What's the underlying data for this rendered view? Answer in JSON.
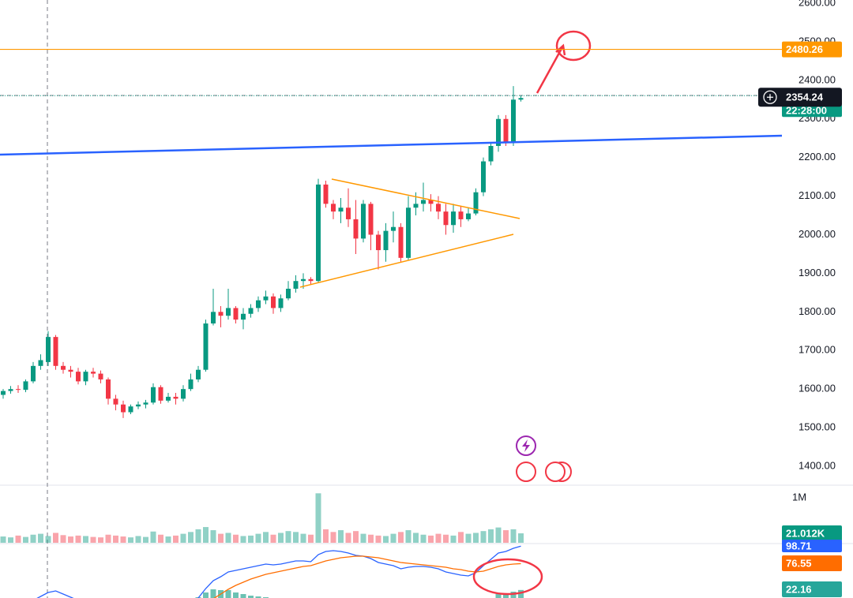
{
  "chart_data": {
    "type": "candlestick",
    "ylim": [
      1400,
      2600
    ],
    "yticks": [
      {
        "value": 2600,
        "label": "2600.00"
      },
      {
        "value": 2500,
        "label": "2500.00"
      },
      {
        "value": 2400,
        "label": "2400.00"
      },
      {
        "value": 2300,
        "label": "2300.00"
      },
      {
        "value": 2200,
        "label": "2200.00"
      },
      {
        "value": 2100,
        "label": "2100.00"
      },
      {
        "value": 2000,
        "label": "2000.00"
      },
      {
        "value": 1900,
        "label": "1900.00"
      },
      {
        "value": 1800,
        "label": "1800.00"
      },
      {
        "value": 1700,
        "label": "1700.00"
      },
      {
        "value": 1600,
        "label": "1600.00"
      },
      {
        "value": 1500,
        "label": "1500.00"
      },
      {
        "value": 1400,
        "label": "1400.00"
      }
    ],
    "open": [
      1585,
      1595,
      1600,
      1598,
      1620,
      1660,
      1670,
      1735,
      1660,
      1650,
      1645,
      1620,
      1645,
      1640,
      1625,
      1575,
      1560,
      1540,
      1555,
      1560,
      1565,
      1605,
      1570,
      1580,
      1575,
      1600,
      1625,
      1650,
      1770,
      1800,
      1790,
      1810,
      1780,
      1795,
      1810,
      1830,
      1840,
      1810,
      1835,
      1860,
      1880,
      1885,
      1880,
      2130,
      2080,
      2060,
      2070,
      2040,
      1990,
      2080,
      2000,
      1960,
      2010,
      2020,
      1940,
      2070,
      2080,
      2090,
      2080,
      2060,
      2025,
      2060,
      2040,
      2055,
      2110,
      2190,
      2230,
      2300,
      2240,
      2350
    ],
    "high": [
      1600,
      1608,
      1610,
      1625,
      1670,
      1690,
      1750,
      1740,
      1670,
      1660,
      1655,
      1650,
      1655,
      1648,
      1630,
      1585,
      1570,
      1560,
      1568,
      1572,
      1615,
      1610,
      1590,
      1590,
      1610,
      1640,
      1660,
      1780,
      1860,
      1815,
      1860,
      1815,
      1810,
      1820,
      1840,
      1855,
      1848,
      1845,
      1880,
      1895,
      1900,
      1890,
      2145,
      2140,
      2090,
      2095,
      2120,
      2090,
      2090,
      2085,
      2010,
      2030,
      2060,
      2030,
      2100,
      2110,
      2135,
      2105,
      2100,
      2080,
      2080,
      2075,
      2070,
      2120,
      2200,
      2240,
      2310,
      2310,
      2385,
      2360
    ],
    "low": [
      1575,
      1588,
      1590,
      1592,
      1615,
      1650,
      1660,
      1650,
      1640,
      1630,
      1612,
      1610,
      1630,
      1615,
      1560,
      1545,
      1525,
      1535,
      1548,
      1550,
      1560,
      1562,
      1565,
      1560,
      1568,
      1595,
      1618,
      1645,
      1765,
      1760,
      1780,
      1770,
      1755,
      1785,
      1800,
      1820,
      1795,
      1800,
      1830,
      1850,
      1860,
      1870,
      1875,
      2070,
      2040,
      2030,
      2020,
      1950,
      1980,
      1960,
      1910,
      1930,
      1980,
      1930,
      1935,
      2050,
      2060,
      2060,
      2040,
      2000,
      2005,
      2020,
      2035,
      2050,
      2100,
      2180,
      2215,
      2230,
      2230,
      2345
    ],
    "close": [
      1595,
      1600,
      1598,
      1620,
      1660,
      1675,
      1735,
      1660,
      1650,
      1645,
      1620,
      1645,
      1640,
      1625,
      1575,
      1560,
      1540,
      1555,
      1560,
      1565,
      1605,
      1570,
      1580,
      1575,
      1600,
      1625,
      1650,
      1770,
      1800,
      1790,
      1810,
      1780,
      1795,
      1810,
      1830,
      1840,
      1810,
      1835,
      1860,
      1880,
      1885,
      1880,
      2130,
      2080,
      2060,
      2070,
      2040,
      1990,
      2080,
      2000,
      1960,
      2010,
      2020,
      1940,
      2070,
      2080,
      2090,
      2080,
      2060,
      2025,
      2060,
      2040,
      2055,
      2110,
      2190,
      2230,
      2300,
      2240,
      2350,
      2354.24
    ],
    "volume": [
      14,
      12,
      16,
      13,
      18,
      20,
      15,
      22,
      17,
      14,
      16,
      15,
      13,
      12,
      18,
      16,
      14,
      12,
      15,
      13,
      25,
      18,
      14,
      16,
      20,
      24,
      30,
      35,
      28,
      20,
      22,
      18,
      15,
      16,
      20,
      24,
      18,
      22,
      26,
      24,
      20,
      18,
      110,
      30,
      24,
      28,
      22,
      26,
      20,
      18,
      16,
      15,
      20,
      24,
      28,
      22,
      18,
      16,
      20,
      18,
      16,
      24,
      20,
      22,
      26,
      30,
      34,
      28,
      30,
      21.012
    ],
    "volume_label": "21.012K",
    "volume_scale_label": "1M",
    "macd": [
      20,
      22,
      25,
      27,
      30,
      35,
      40,
      42,
      38,
      34,
      30,
      28,
      25,
      22,
      15,
      10,
      5,
      3,
      2,
      4,
      8,
      12,
      15,
      18,
      22,
      28,
      33,
      45,
      55,
      60,
      66,
      68,
      70,
      72,
      74,
      76,
      75,
      76,
      78,
      80,
      80,
      79,
      88,
      92,
      93,
      92,
      90,
      87,
      86,
      83,
      78,
      76,
      74,
      70,
      72,
      73,
      73,
      72,
      70,
      66,
      64,
      62,
      61,
      65,
      74,
      82,
      90,
      92,
      96,
      98.71
    ],
    "signal": [
      15,
      16,
      18,
      20,
      22,
      25,
      28,
      31,
      32,
      32,
      31,
      30,
      28,
      26,
      23,
      20,
      16,
      13,
      10,
      9,
      9,
      10,
      11,
      12,
      14,
      17,
      20,
      26,
      32,
      38,
      44,
      49,
      53,
      57,
      60,
      63,
      65,
      67,
      69,
      71,
      73,
      74,
      77,
      80,
      82,
      84,
      85,
      86,
      86,
      85,
      84,
      82,
      80,
      78,
      77,
      76,
      75,
      74,
      73,
      72,
      70,
      69,
      67,
      66,
      67,
      70,
      73,
      75,
      76,
      76.55
    ],
    "hist": [
      5,
      6,
      7,
      7,
      8,
      10,
      12,
      11,
      6,
      2,
      -1,
      -2,
      -3,
      -4,
      -8,
      -10,
      -11,
      -10,
      -8,
      -5,
      -1,
      2,
      4,
      6,
      8,
      11,
      13,
      19,
      23,
      22,
      22,
      19,
      17,
      15,
      14,
      13,
      10,
      9,
      9,
      9,
      7,
      5,
      11,
      12,
      11,
      8,
      5,
      1,
      0,
      -2,
      -6,
      -6,
      -6,
      -8,
      -5,
      -3,
      -2,
      -2,
      -3,
      -6,
      -6,
      -7,
      -6,
      -1,
      7,
      12,
      17,
      17,
      20,
      22.16
    ],
    "alert_line": 2480.26,
    "countdown": "22:28:00",
    "up_color": "#089981",
    "down_color": "#f23645",
    "macd_color": "#2962ff",
    "signal_color": "#ff6d00"
  }
}
